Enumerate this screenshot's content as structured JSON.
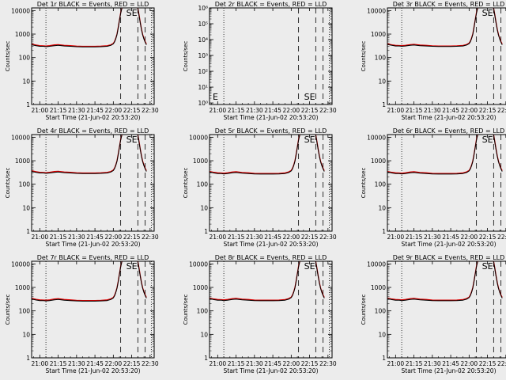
{
  "chart_data": {
    "type": "line",
    "xlabel": "Start Time (21-Jun-02 20:53:20)",
    "ylabel": "Counts/sec",
    "x_ticks": [
      "21:00",
      "21:15",
      "21:30",
      "21:45",
      "22:00",
      "22:15",
      "22:30"
    ],
    "x_tick_minutes": [
      0,
      15,
      30,
      45,
      60,
      75,
      90
    ],
    "xlim_minutes": [
      -6.67,
      93.33
    ],
    "x_axis_zero_time": "21:00",
    "y_scale": "log",
    "ylim": [
      1,
      13000
    ],
    "y_ticks": [
      "1",
      "10",
      "100",
      "1000",
      "10000"
    ],
    "series_colors": {
      "events": "#000000",
      "lld": "#dd0000"
    },
    "dotted_lines_minutes": [
      5,
      91
    ],
    "dashed_lines_minutes": [
      66,
      80,
      86
    ],
    "se_marker": "SE",
    "se_marker_minute": 75,
    "panels": [
      {
        "title": "Det 1r BLACK = Events, RED = LLD",
        "x": [
          -6.5,
          -3,
          0,
          3,
          5,
          8,
          12,
          15,
          20,
          25,
          30,
          35,
          40,
          45,
          50,
          55,
          58,
          60,
          61,
          62,
          63,
          64,
          65,
          66,
          67,
          68,
          69,
          70,
          71.5,
          73,
          80,
          81,
          82,
          83,
          84,
          85,
          86,
          87
        ],
        "events": [
          350,
          320,
          300,
          300,
          290,
          300,
          320,
          330,
          310,
          300,
          290,
          285,
          285,
          285,
          290,
          300,
          330,
          380,
          460,
          620,
          950,
          1800,
          3800,
          7500,
          13000,
          null,
          null,
          null,
          null,
          null,
          13000,
          6000,
          3000,
          1500,
          900,
          600,
          450,
          350
        ],
        "lld": [
          370,
          340,
          320,
          315,
          310,
          320,
          345,
          355,
          330,
          320,
          305,
          300,
          300,
          300,
          305,
          318,
          350,
          400,
          490,
          660,
          1000,
          1900,
          4000,
          8000,
          13000,
          null,
          null,
          null,
          null,
          null,
          13000,
          6500,
          3200,
          1600,
          950,
          650,
          480,
          380
        ]
      },
      {
        "title": "Det 2r BLACK = Events, RED = LLD",
        "x": [],
        "events": [],
        "lld": [],
        "ylim": [
          0.8,
          1000000
        ],
        "y_ticks": [
          "10⁰",
          "10¹",
          "10²",
          "10³",
          "10⁴",
          "10⁵",
          "10⁶"
        ],
        "empty_marker": "E"
      },
      {
        "title": "Det 3r BLACK = Events, RED = LLD",
        "x": [
          -6.5,
          -3,
          0,
          3,
          5,
          8,
          12,
          15,
          20,
          25,
          30,
          35,
          40,
          45,
          50,
          55,
          58,
          60,
          61,
          62,
          63,
          64,
          65,
          66,
          67,
          68,
          69,
          70,
          71.5,
          73,
          80,
          81,
          82,
          83,
          84,
          85,
          86,
          87
        ],
        "events": [
          360,
          330,
          310,
          310,
          300,
          310,
          330,
          340,
          320,
          310,
          300,
          295,
          295,
          295,
          300,
          310,
          340,
          390,
          470,
          630,
          960,
          1850,
          3900,
          7600,
          13000,
          null,
          null,
          null,
          null,
          null,
          13000,
          6000,
          3000,
          1500,
          900,
          600,
          450,
          350
        ],
        "lld": [
          380,
          350,
          330,
          325,
          320,
          330,
          355,
          365,
          340,
          330,
          315,
          310,
          310,
          310,
          315,
          328,
          360,
          410,
          500,
          670,
          1010,
          1950,
          4100,
          8100,
          13000,
          null,
          null,
          null,
          null,
          null,
          13000,
          6500,
          3200,
          1600,
          950,
          650,
          480,
          380
        ]
      },
      {
        "title": "Det 4r BLACK = Events, RED = LLD",
        "x": [
          -6.5,
          -3,
          0,
          3,
          5,
          8,
          12,
          15,
          20,
          25,
          30,
          35,
          40,
          45,
          50,
          55,
          58,
          60,
          61,
          62,
          63,
          64,
          65,
          66,
          67,
          68,
          69,
          70,
          71.5,
          73,
          80,
          81,
          82,
          83,
          84,
          85,
          86,
          87
        ],
        "events": [
          350,
          320,
          300,
          300,
          290,
          300,
          320,
          330,
          310,
          300,
          290,
          285,
          285,
          285,
          290,
          300,
          330,
          380,
          460,
          620,
          950,
          1800,
          3800,
          7500,
          13000,
          null,
          null,
          null,
          null,
          null,
          13000,
          6000,
          3000,
          1500,
          900,
          600,
          450,
          350
        ],
        "lld": [
          370,
          340,
          320,
          315,
          310,
          320,
          345,
          355,
          330,
          320,
          305,
          300,
          300,
          300,
          305,
          318,
          350,
          400,
          490,
          660,
          1000,
          1900,
          4000,
          8000,
          13000,
          null,
          null,
          null,
          null,
          null,
          13000,
          6500,
          3200,
          1600,
          950,
          650,
          480,
          380
        ]
      },
      {
        "title": "Det 5r BLACK = Events, RED = LLD",
        "x": [
          -6.5,
          -3,
          0,
          3,
          5,
          8,
          12,
          15,
          20,
          25,
          30,
          35,
          40,
          45,
          50,
          55,
          58,
          60,
          61,
          62,
          63,
          64,
          65,
          66,
          67,
          68,
          69,
          70,
          71.5,
          73,
          80,
          81,
          82,
          83,
          84,
          85,
          86,
          87
        ],
        "events": [
          330,
          300,
          285,
          285,
          275,
          285,
          305,
          315,
          295,
          285,
          275,
          270,
          270,
          270,
          275,
          285,
          315,
          365,
          445,
          600,
          930,
          1750,
          3700,
          7400,
          13000,
          null,
          null,
          null,
          null,
          null,
          13000,
          6000,
          3000,
          1500,
          900,
          600,
          450,
          350
        ],
        "lld": [
          350,
          320,
          305,
          300,
          295,
          305,
          330,
          340,
          315,
          305,
          290,
          285,
          285,
          285,
          290,
          303,
          335,
          385,
          475,
          640,
          980,
          1850,
          3900,
          7900,
          13000,
          null,
          null,
          null,
          null,
          null,
          13000,
          6500,
          3200,
          1600,
          950,
          650,
          480,
          380
        ]
      },
      {
        "title": "Det 6r BLACK = Events, RED = LLD",
        "x": [
          -6.5,
          -3,
          0,
          3,
          5,
          8,
          12,
          15,
          20,
          25,
          30,
          35,
          40,
          45,
          50,
          55,
          58,
          60,
          61,
          62,
          63,
          64,
          65,
          66,
          67,
          68,
          69,
          70,
          71.5,
          73,
          80,
          81,
          82,
          83,
          84,
          85,
          86,
          87
        ],
        "events": [
          330,
          300,
          285,
          285,
          275,
          285,
          305,
          315,
          295,
          285,
          275,
          270,
          270,
          270,
          275,
          285,
          315,
          365,
          445,
          600,
          930,
          1750,
          3700,
          7400,
          13000,
          null,
          null,
          null,
          null,
          null,
          13000,
          6000,
          3000,
          1500,
          900,
          600,
          450,
          350
        ],
        "lld": [
          350,
          320,
          305,
          300,
          295,
          305,
          330,
          340,
          315,
          305,
          290,
          285,
          285,
          285,
          290,
          303,
          335,
          385,
          475,
          640,
          980,
          1850,
          3900,
          7900,
          13000,
          null,
          null,
          null,
          null,
          null,
          13000,
          6500,
          3200,
          1600,
          950,
          650,
          480,
          380
        ]
      },
      {
        "title": "Det 7r BLACK = Events, RED = LLD",
        "x": [
          -6.5,
          -3,
          0,
          3,
          5,
          8,
          12,
          15,
          20,
          25,
          30,
          35,
          40,
          45,
          50,
          55,
          58,
          60,
          61,
          62,
          63,
          64,
          65,
          66,
          67,
          68,
          69,
          70,
          71.5,
          73,
          80,
          81,
          82,
          83,
          84,
          85,
          86,
          87
        ],
        "events": [
          320,
          290,
          275,
          275,
          265,
          275,
          295,
          305,
          285,
          275,
          265,
          260,
          260,
          260,
          265,
          275,
          305,
          355,
          435,
          590,
          920,
          1700,
          3650,
          7300,
          13000,
          null,
          null,
          null,
          null,
          null,
          13000,
          6000,
          3000,
          1500,
          900,
          600,
          450,
          350
        ],
        "lld": [
          340,
          310,
          295,
          290,
          285,
          295,
          320,
          330,
          305,
          295,
          280,
          275,
          275,
          275,
          280,
          293,
          325,
          375,
          465,
          630,
          970,
          1800,
          3850,
          7800,
          13000,
          null,
          null,
          null,
          null,
          null,
          13000,
          6500,
          3200,
          1600,
          950,
          650,
          480,
          380
        ]
      },
      {
        "title": "Det 8r BLACK = Events, RED = LLD",
        "x": [
          -6.5,
          -3,
          0,
          3,
          5,
          8,
          12,
          15,
          20,
          25,
          30,
          35,
          40,
          45,
          50,
          55,
          58,
          60,
          61,
          62,
          63,
          64,
          65,
          66,
          67,
          68,
          69,
          70,
          71.5,
          73,
          80,
          81,
          82,
          83,
          84,
          85,
          86,
          87
        ],
        "events": [
          330,
          300,
          285,
          285,
          275,
          285,
          305,
          315,
          295,
          285,
          275,
          270,
          270,
          270,
          275,
          285,
          315,
          365,
          445,
          600,
          930,
          1750,
          3700,
          7400,
          13000,
          null,
          null,
          null,
          null,
          null,
          13000,
          6000,
          3000,
          1500,
          900,
          600,
          450,
          350
        ],
        "lld": [
          350,
          320,
          305,
          300,
          295,
          305,
          330,
          340,
          315,
          305,
          290,
          285,
          285,
          285,
          290,
          303,
          335,
          385,
          475,
          640,
          980,
          1850,
          3900,
          7900,
          13000,
          null,
          null,
          null,
          null,
          null,
          13000,
          6500,
          3200,
          1600,
          950,
          650,
          480,
          380
        ]
      },
      {
        "title": "Det 9r BLACK = Events, RED = LLD",
        "x": [
          -6.5,
          -3,
          0,
          3,
          5,
          8,
          12,
          15,
          20,
          25,
          30,
          35,
          40,
          45,
          50,
          55,
          58,
          60,
          61,
          62,
          63,
          64,
          65,
          66,
          67,
          68,
          69,
          70,
          71.5,
          73,
          80,
          81,
          82,
          83,
          84,
          85,
          86,
          87
        ],
        "events": [
          330,
          300,
          285,
          285,
          275,
          285,
          305,
          315,
          295,
          285,
          275,
          270,
          270,
          270,
          275,
          285,
          315,
          365,
          445,
          600,
          930,
          1750,
          3700,
          7400,
          13000,
          null,
          null,
          null,
          null,
          null,
          13000,
          6000,
          3000,
          1500,
          900,
          600,
          450,
          350
        ],
        "lld": [
          350,
          320,
          305,
          300,
          295,
          305,
          330,
          340,
          315,
          305,
          290,
          285,
          285,
          285,
          290,
          303,
          335,
          385,
          475,
          640,
          980,
          1850,
          3900,
          7900,
          13000,
          null,
          null,
          null,
          null,
          null,
          13000,
          6500,
          3200,
          1600,
          950,
          650,
          480,
          380
        ]
      }
    ]
  }
}
